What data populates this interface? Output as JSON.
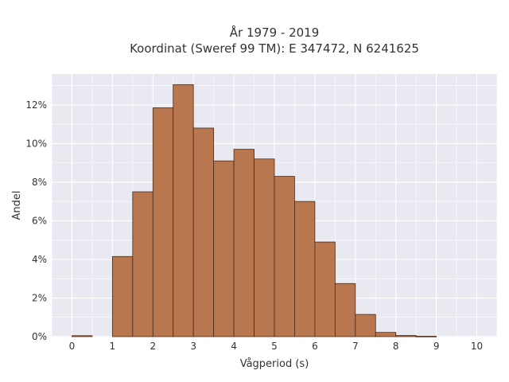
{
  "chart_data": {
    "type": "bar",
    "title": "År 1979 - 2019",
    "subtitle": "Koordinat (Sweref 99 TM): E 347472, N 6241625",
    "xlabel": "Vågperiod (s)",
    "ylabel": "Andel",
    "bin_width": 0.5,
    "bins": [
      {
        "start": 0.0,
        "value": 0.05
      },
      {
        "start": 1.0,
        "value": 4.15
      },
      {
        "start": 1.5,
        "value": 7.5
      },
      {
        "start": 2.0,
        "value": 11.85
      },
      {
        "start": 2.5,
        "value": 13.05
      },
      {
        "start": 3.0,
        "value": 10.8
      },
      {
        "start": 3.5,
        "value": 9.1
      },
      {
        "start": 4.0,
        "value": 9.7
      },
      {
        "start": 4.5,
        "value": 9.2
      },
      {
        "start": 5.0,
        "value": 8.3
      },
      {
        "start": 5.5,
        "value": 7.0
      },
      {
        "start": 6.0,
        "value": 4.9
      },
      {
        "start": 6.5,
        "value": 2.75
      },
      {
        "start": 7.0,
        "value": 1.15
      },
      {
        "start": 7.5,
        "value": 0.22
      },
      {
        "start": 8.0,
        "value": 0.06
      },
      {
        "start": 8.5,
        "value": 0.02
      }
    ],
    "xlim": [
      -0.5,
      10.5
    ],
    "ylim": [
      0,
      13.6
    ],
    "x_ticks": [
      0,
      1,
      2,
      3,
      4,
      5,
      6,
      7,
      8,
      9,
      10
    ],
    "y_ticks": [
      0,
      2,
      4,
      6,
      8,
      10,
      12
    ],
    "y_tick_labels": [
      "0%",
      "2%",
      "4%",
      "6%",
      "8%",
      "10%",
      "12%"
    ],
    "grid": true,
    "colors": {
      "bar_fill": "#b9774f",
      "bar_stroke": "#4a2a1a",
      "plot_bg": "#e9e9f1",
      "grid": "#ffffff"
    }
  }
}
